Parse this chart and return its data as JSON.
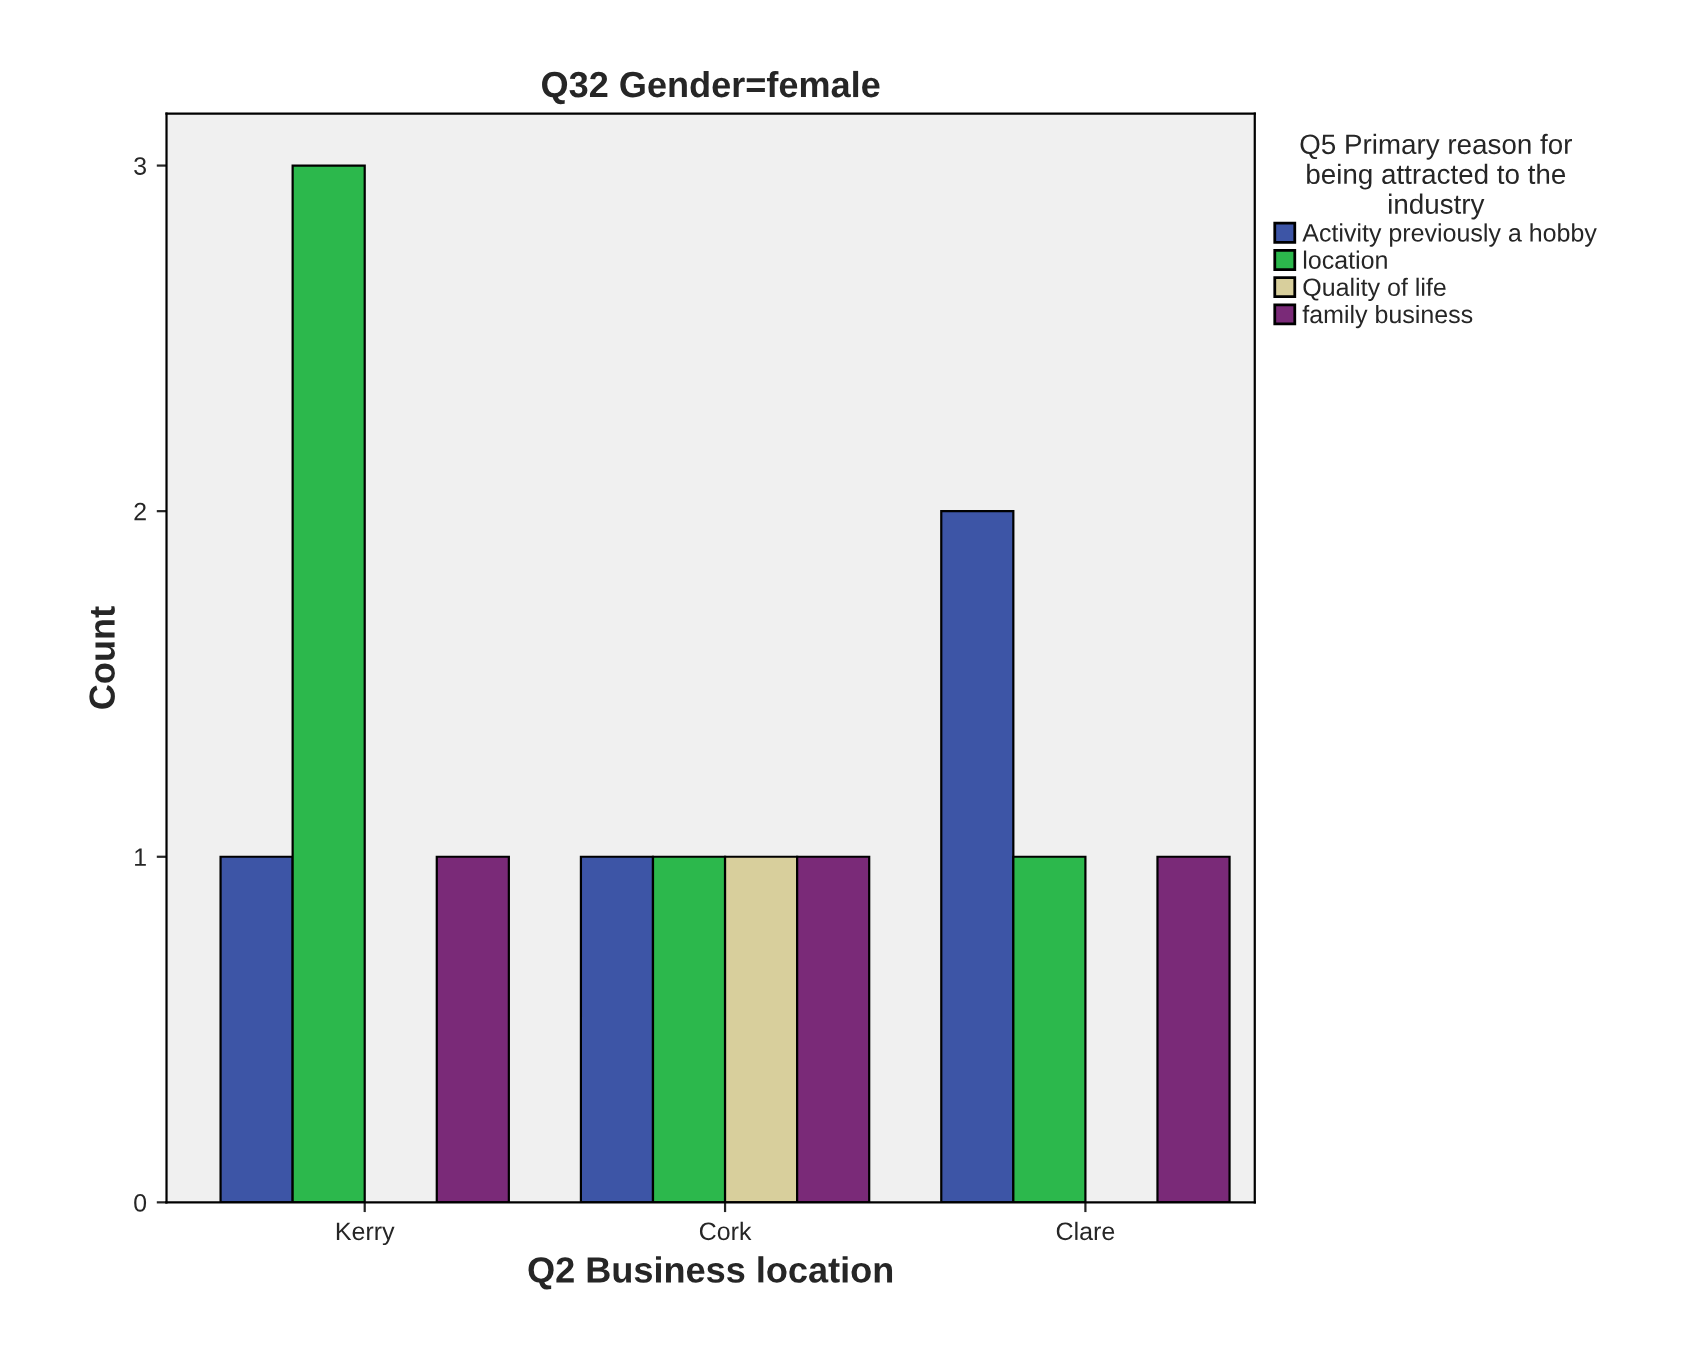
{
  "chart_data": {
    "type": "bar",
    "title": "Q32 Gender=female",
    "xlabel": "Q2 Business location",
    "ylabel": "Count",
    "categories": [
      "Kerry",
      "Cork",
      "Clare"
    ],
    "legend_title": "Q5 Primary reason for\nbeing attracted to the\nindustry",
    "series": [
      {
        "name": "Activity previously a hobby",
        "color": "#3d55a6",
        "values": [
          1,
          1,
          2
        ]
      },
      {
        "name": "location",
        "color": "#2cb84c",
        "values": [
          3,
          1,
          1
        ]
      },
      {
        "name": "Quality of life",
        "color": "#d8cf9c",
        "values": [
          null,
          1,
          null
        ]
      },
      {
        "name": "family business",
        "color": "#7a2a78",
        "values": [
          1,
          1,
          1
        ]
      }
    ],
    "ylim": [
      0,
      3.15
    ],
    "yticks": [
      0,
      1,
      2,
      3
    ],
    "grid": false,
    "legend": "top right"
  }
}
